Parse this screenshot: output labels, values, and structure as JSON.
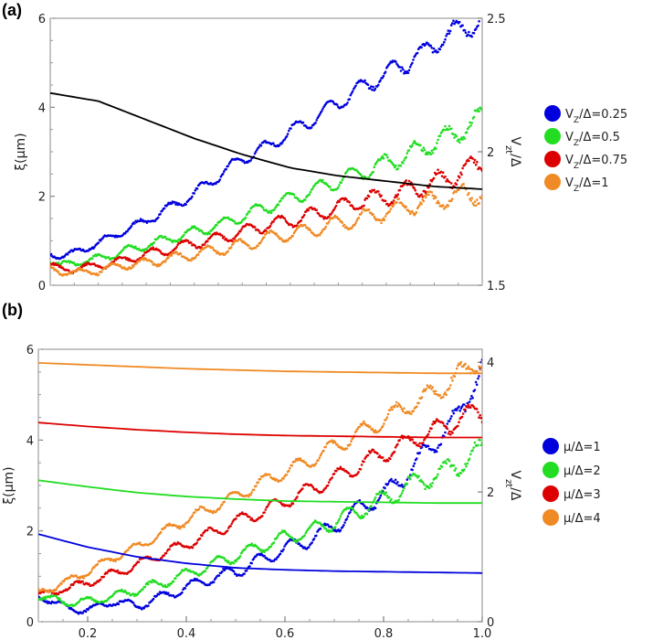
{
  "panels": [
    {
      "label": "(a)",
      "chart_data": {
        "type": "scatter",
        "x_range": [
          0.1,
          1.0
        ],
        "ylim_left": [
          0,
          6
        ],
        "ylim_right": [
          1.5,
          2.5
        ],
        "yticks_left": [
          "0",
          "2",
          "4",
          "6"
        ],
        "yticks_right": [
          "1.5",
          "2",
          "2.5"
        ],
        "xticks": [],
        "ylabel": "ξ(μm)",
        "ylabel_right": "V_{zt}/Δ",
        "series": [
          {
            "name": "V_Z/Δ=0.25",
            "color": "#0000dd",
            "kind": "points",
            "x": [
              0.1,
              0.12,
              0.15,
              0.2,
              0.25,
              0.3,
              0.35,
              0.4,
              0.45,
              0.5,
              0.55,
              0.6,
              0.65,
              0.7,
              0.75,
              0.8,
              0.85,
              0.9,
              0.95,
              1.0
            ],
            "y": [
              0.7,
              0.65,
              0.72,
              0.95,
              1.2,
              1.45,
              1.75,
              2.05,
              2.45,
              2.85,
              3.1,
              3.45,
              3.75,
              4.1,
              4.45,
              4.75,
              5.05,
              5.4,
              5.75,
              5.95
            ]
          },
          {
            "name": "V_Z/Δ=0.5",
            "color": "#22dd22",
            "kind": "points",
            "x": [
              0.1,
              0.12,
              0.15,
              0.2,
              0.25,
              0.3,
              0.35,
              0.4,
              0.45,
              0.5,
              0.55,
              0.6,
              0.65,
              0.7,
              0.75,
              0.8,
              0.85,
              0.9,
              0.95,
              1.0
            ],
            "y": [
              0.55,
              0.45,
              0.5,
              0.6,
              0.75,
              0.9,
              1.05,
              1.2,
              1.35,
              1.55,
              1.75,
              1.95,
              2.15,
              2.35,
              2.55,
              2.75,
              2.95,
              3.2,
              3.45,
              3.75
            ]
          },
          {
            "name": "V_Z/Δ=0.75",
            "color": "#dd0000",
            "kind": "points",
            "x": [
              0.1,
              0.12,
              0.15,
              0.2,
              0.25,
              0.3,
              0.35,
              0.4,
              0.45,
              0.5,
              0.55,
              0.6,
              0.65,
              0.7,
              0.75,
              0.8,
              0.85,
              0.9,
              0.95,
              1.0
            ],
            "y": [
              0.45,
              0.38,
              0.36,
              0.45,
              0.55,
              0.7,
              0.8,
              0.95,
              1.05,
              1.2,
              1.35,
              1.45,
              1.6,
              1.75,
              1.9,
              2.0,
              2.15,
              2.3,
              2.5,
              2.75
            ]
          },
          {
            "name": "V_Z/Δ=1",
            "color": "#f08a24",
            "kind": "points",
            "x": [
              0.1,
              0.12,
              0.15,
              0.2,
              0.25,
              0.3,
              0.35,
              0.4,
              0.45,
              0.5,
              0.55,
              0.6,
              0.65,
              0.7,
              0.75,
              0.8,
              0.85,
              0.9,
              0.95,
              1.0
            ],
            "y": [
              0.38,
              0.3,
              0.28,
              0.32,
              0.45,
              0.5,
              0.6,
              0.7,
              0.8,
              0.9,
              1.05,
              1.15,
              1.25,
              1.4,
              1.5,
              1.65,
              1.8,
              1.9,
              2.0,
              2.1
            ]
          },
          {
            "name": "",
            "color": "#000000",
            "kind": "line",
            "axis": "right",
            "x": [
              0.1,
              0.2,
              0.3,
              0.4,
              0.5,
              0.6,
              0.7,
              0.8,
              0.9,
              1.0
            ],
            "y": [
              2.22,
              2.19,
              2.12,
              2.05,
              1.99,
              1.94,
              1.91,
              1.89,
              1.87,
              1.86
            ]
          }
        ]
      }
    },
    {
      "label": "(b)",
      "chart_data": {
        "type": "scatter",
        "x_range": [
          0.1,
          1.0
        ],
        "ylim_left": [
          0,
          6
        ],
        "ylim_right": [
          0,
          4.2
        ],
        "yticks_left": [
          "0",
          "2",
          "4",
          "6"
        ],
        "yticks_right": [
          "0",
          "2",
          "4"
        ],
        "xticks": [
          "0.2",
          "0.4",
          "0.6",
          "0.8",
          "1.0"
        ],
        "ylabel": "ξ(μm)",
        "ylabel_right": "V_{zt}/Δ",
        "series": [
          {
            "name": "μ/Δ=1",
            "color": "#0000dd",
            "kind": "points",
            "x": [
              0.1,
              0.13,
              0.16,
              0.2,
              0.25,
              0.3,
              0.35,
              0.4,
              0.45,
              0.5,
              0.55,
              0.6,
              0.65,
              0.7,
              0.75,
              0.8,
              0.85,
              0.9,
              0.95,
              1.0
            ],
            "y": [
              0.55,
              0.45,
              0.3,
              0.25,
              0.45,
              0.35,
              0.55,
              0.75,
              0.95,
              1.1,
              1.35,
              1.6,
              1.8,
              2.1,
              2.5,
              2.8,
              3.3,
              3.9,
              4.5,
              5.6
            ]
          },
          {
            "name": "μ/Δ=2",
            "color": "#22dd22",
            "kind": "points",
            "x": [
              0.1,
              0.13,
              0.16,
              0.2,
              0.25,
              0.3,
              0.35,
              0.4,
              0.45,
              0.5,
              0.55,
              0.6,
              0.65,
              0.7,
              0.75,
              0.8,
              0.85,
              0.9,
              0.95,
              1.0
            ],
            "y": [
              0.55,
              0.5,
              0.42,
              0.45,
              0.55,
              0.7,
              0.85,
              1.05,
              1.25,
              1.45,
              1.65,
              1.85,
              2.0,
              2.2,
              2.45,
              2.7,
              3.0,
              3.2,
              3.45,
              3.8
            ]
          },
          {
            "name": "μ/Δ=3",
            "color": "#dd0000",
            "kind": "points",
            "x": [
              0.1,
              0.13,
              0.16,
              0.2,
              0.25,
              0.3,
              0.35,
              0.4,
              0.45,
              0.5,
              0.55,
              0.6,
              0.65,
              0.7,
              0.75,
              0.8,
              0.85,
              0.9,
              0.95,
              1.0
            ],
            "y": [
              0.6,
              0.65,
              0.75,
              0.85,
              1.05,
              1.25,
              1.5,
              1.7,
              1.95,
              2.2,
              2.4,
              2.65,
              2.9,
              3.15,
              3.45,
              3.7,
              3.95,
              4.2,
              4.45,
              4.65
            ]
          },
          {
            "name": "μ/Δ=4",
            "color": "#f08a24",
            "kind": "points",
            "x": [
              0.1,
              0.13,
              0.16,
              0.2,
              0.25,
              0.3,
              0.35,
              0.4,
              0.45,
              0.5,
              0.55,
              0.6,
              0.65,
              0.7,
              0.75,
              0.8,
              0.85,
              0.9,
              0.95,
              1.0
            ],
            "y": [
              0.65,
              0.75,
              0.9,
              1.1,
              1.4,
              1.65,
              1.95,
              2.25,
              2.5,
              2.75,
              3.05,
              3.3,
              3.55,
              3.85,
              4.15,
              4.45,
              4.75,
              5.0,
              5.4,
              5.8
            ]
          },
          {
            "name": "",
            "color": "#0000dd",
            "kind": "line",
            "axis": "right",
            "x": [
              0.1,
              0.2,
              0.3,
              0.4,
              0.5,
              0.6,
              0.7,
              0.8,
              0.9,
              1.0
            ],
            "y": [
              1.35,
              1.15,
              1.0,
              0.9,
              0.83,
              0.8,
              0.78,
              0.77,
              0.76,
              0.75
            ]
          },
          {
            "name": "",
            "color": "#22dd22",
            "kind": "line",
            "axis": "right",
            "x": [
              0.1,
              0.2,
              0.3,
              0.4,
              0.5,
              0.6,
              0.7,
              0.8,
              0.9,
              1.0
            ],
            "y": [
              2.18,
              2.08,
              1.99,
              1.93,
              1.89,
              1.86,
              1.85,
              1.84,
              1.83,
              1.83
            ]
          },
          {
            "name": "",
            "color": "#dd0000",
            "kind": "line",
            "axis": "right",
            "x": [
              0.1,
              0.2,
              0.3,
              0.4,
              0.5,
              0.6,
              0.7,
              0.8,
              0.9,
              1.0
            ],
            "y": [
              3.07,
              3.01,
              2.96,
              2.92,
              2.89,
              2.87,
              2.86,
              2.85,
              2.84,
              2.84
            ]
          },
          {
            "name": "",
            "color": "#f08a24",
            "kind": "line",
            "axis": "right",
            "x": [
              0.1,
              0.2,
              0.3,
              0.4,
              0.5,
              0.6,
              0.7,
              0.8,
              0.9,
              1.0
            ],
            "y": [
              3.99,
              3.96,
              3.93,
              3.9,
              3.88,
              3.86,
              3.85,
              3.84,
              3.83,
              3.83
            ]
          }
        ]
      }
    }
  ]
}
